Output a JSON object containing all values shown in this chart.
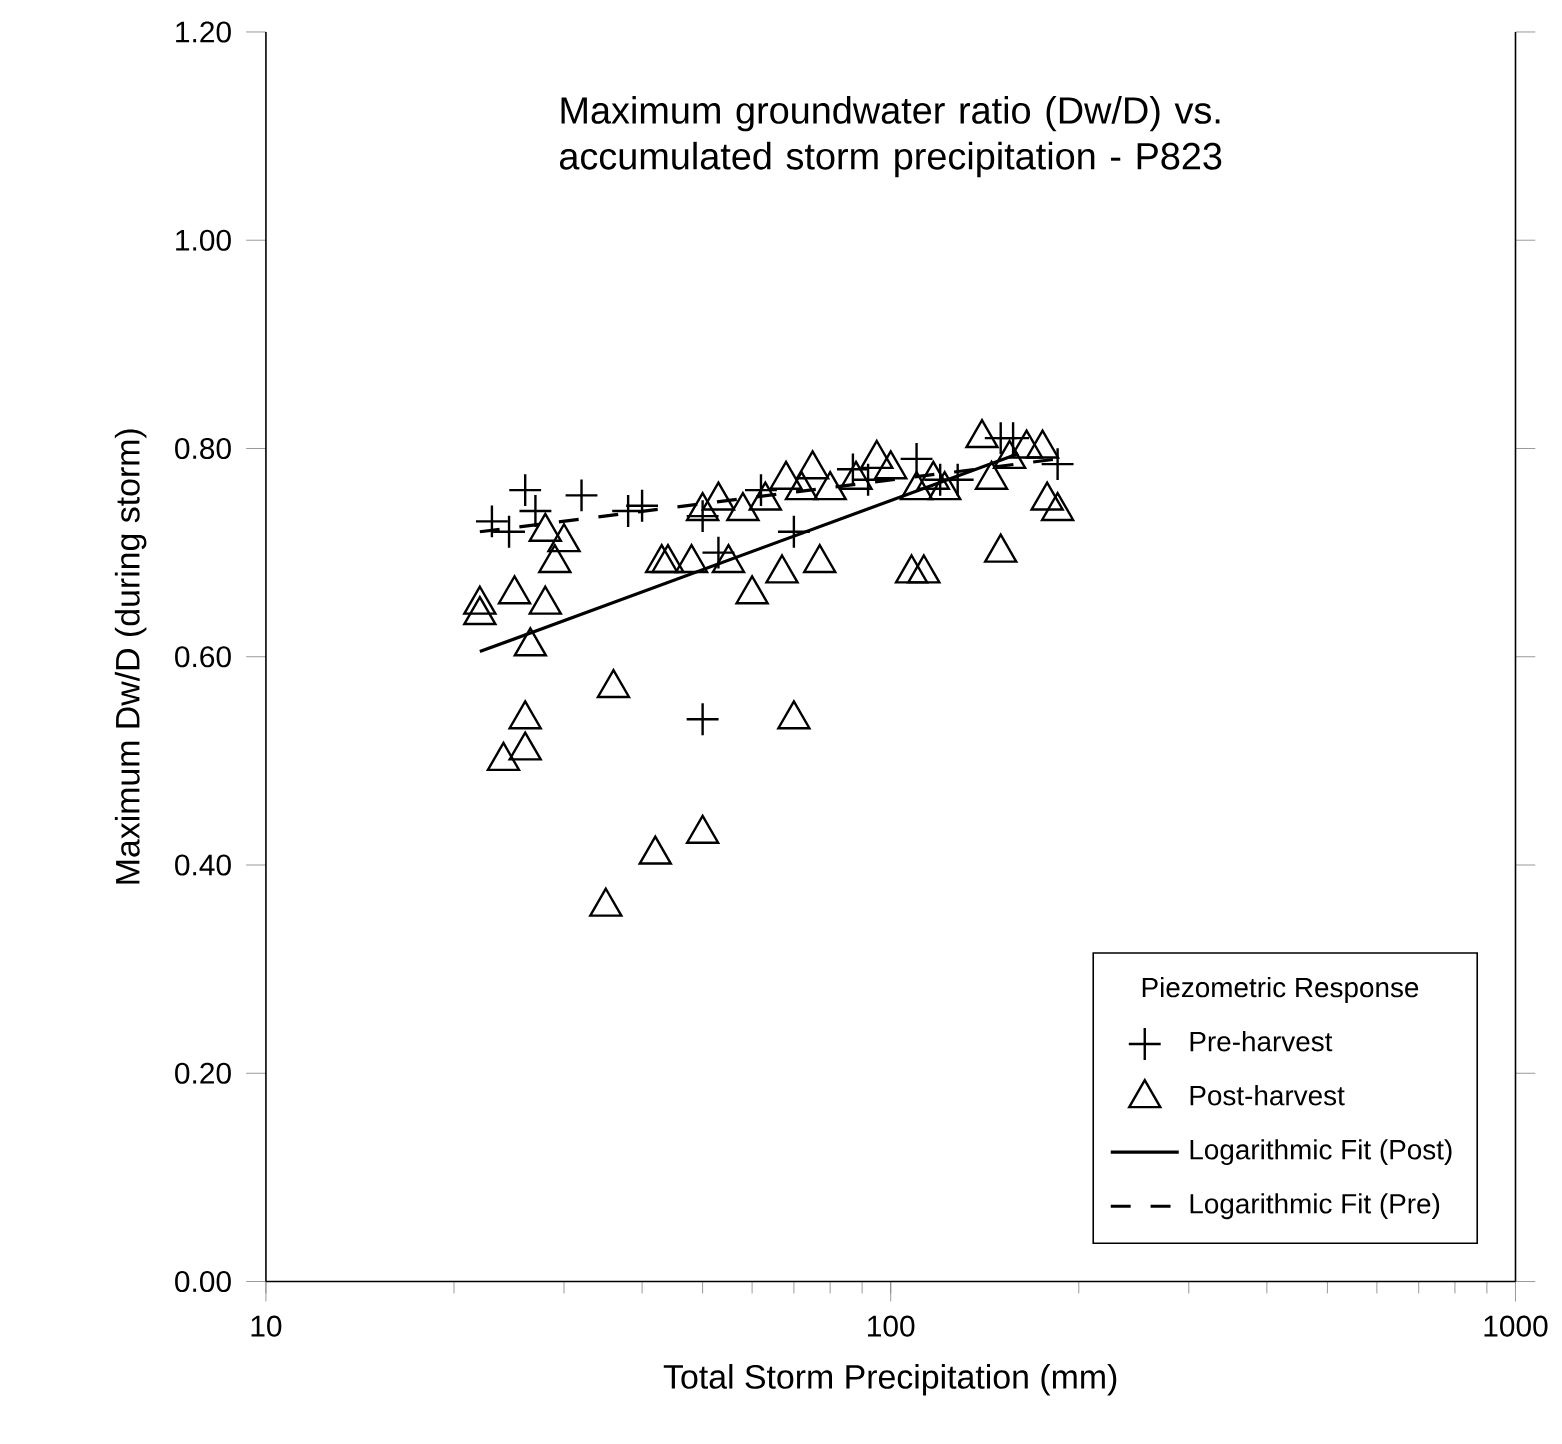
{
  "chart_data": {
    "type": "scatter",
    "title": "Maximum groundwater ratio (Dw/D) vs. accumulated storm precipitation - P823",
    "xlabel": "Total Storm Precipitation (mm)",
    "ylabel": "Maximum Dw/D (during storm)",
    "legend_title": "Piezometric Response",
    "log": "x",
    "grid": false,
    "legend": "bottom right",
    "xlim": [
      10,
      1000
    ],
    "xticks": [
      10,
      100,
      1000
    ],
    "ylim": [
      0,
      1.2
    ],
    "yticks": [
      {
        "value": 0,
        "label": "0.00"
      },
      {
        "value": 0.2,
        "label": "0.20"
      },
      {
        "value": 0.4,
        "label": "0.40"
      },
      {
        "value": 0.6,
        "label": "0.60"
      },
      {
        "value": 0.8,
        "label": "0.80"
      },
      {
        "value": 1.0,
        "label": "1.00"
      },
      {
        "value": 1.2,
        "label": "1.20"
      }
    ],
    "series": [
      {
        "name": "Pre-harvest",
        "marker": "cross",
        "color": "#000000",
        "x": [
          23,
          24.5,
          26,
          27,
          32,
          38,
          40,
          50,
          50,
          53,
          62,
          70,
          87,
          92,
          110,
          120,
          128,
          150,
          157,
          185
        ],
        "values": [
          0.73,
          0.72,
          0.76,
          0.74,
          0.755,
          0.74,
          0.745,
          0.735,
          0.54,
          0.7,
          0.76,
          0.72,
          0.78,
          0.77,
          0.79,
          0.77,
          0.77,
          0.81,
          0.81,
          0.785
        ]
      },
      {
        "name": "Post-harvest",
        "marker": "triangle",
        "color": "#000000",
        "x": [
          22,
          22,
          24,
          25,
          26,
          26,
          26.5,
          28,
          28,
          29,
          30,
          35,
          36,
          42,
          43,
          44,
          48,
          50,
          50,
          53,
          55,
          58,
          60,
          63,
          67,
          68,
          70,
          72,
          75,
          77,
          80,
          88,
          95,
          100,
          108,
          110,
          113,
          117,
          122,
          140,
          145,
          150,
          155,
          165,
          175,
          178,
          185
        ],
        "values": [
          0.65,
          0.64,
          0.5,
          0.66,
          0.54,
          0.51,
          0.61,
          0.65,
          0.72,
          0.69,
          0.71,
          0.36,
          0.57,
          0.41,
          0.69,
          0.69,
          0.69,
          0.74,
          0.43,
          0.75,
          0.69,
          0.74,
          0.66,
          0.75,
          0.68,
          0.77,
          0.54,
          0.76,
          0.78,
          0.69,
          0.76,
          0.77,
          0.79,
          0.78,
          0.68,
          0.76,
          0.68,
          0.77,
          0.76,
          0.81,
          0.77,
          0.7,
          0.79,
          0.8,
          0.8,
          0.75,
          0.74
        ]
      },
      {
        "name": "Logarithmic Fit (Post)",
        "type": "line",
        "line_style": "solid",
        "color": "#000000",
        "x": [
          22,
          160
        ],
        "values": [
          0.605,
          0.795
        ]
      },
      {
        "name": "Logarithmic Fit (Pre)",
        "type": "line",
        "line_style": "dashed",
        "color": "#000000",
        "x": [
          22,
          185
        ],
        "values": [
          0.72,
          0.79
        ]
      }
    ]
  }
}
